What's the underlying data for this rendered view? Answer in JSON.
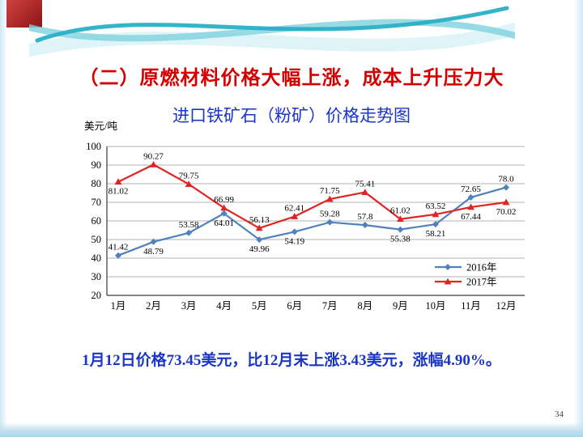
{
  "slide": {
    "title": "（二）原燃材料价格大幅上涨，成本上升压力大",
    "summary": "1月12日价格73.45美元，比12月末上涨3.43美元，涨幅4.90%。",
    "page_number": "34"
  },
  "chart_data": {
    "type": "line",
    "title": "进口铁矿石（粉矿）价格走势图",
    "unit_label": "美元/吨",
    "categories": [
      "1月",
      "2月",
      "3月",
      "4月",
      "5月",
      "6月",
      "7月",
      "8月",
      "9月",
      "10月",
      "11月",
      "12月"
    ],
    "ylim": [
      20,
      100
    ],
    "ytick_step": 10,
    "grid": true,
    "legend_position": "inside-right",
    "series": [
      {
        "name": "2016年",
        "color": "#4f81bd",
        "marker": "diamond",
        "values": [
          41.42,
          48.79,
          53.58,
          64.01,
          49.96,
          54.19,
          59.28,
          57.8,
          55.38,
          58.21,
          72.65,
          78.0
        ],
        "labels": [
          "41.42",
          "48.79",
          "53.58",
          "64.01",
          "49.96",
          "54.19",
          "59.28",
          "57.8",
          "55.38",
          "58.21",
          "72.65",
          "78.0"
        ],
        "label_pos": [
          "above",
          "below",
          "above",
          "below",
          "below",
          "below",
          "above",
          "above",
          "below",
          "below",
          "above",
          "above"
        ]
      },
      {
        "name": "2017年",
        "color": "#e02424",
        "marker": "triangle",
        "values": [
          81.02,
          90.27,
          79.75,
          66.99,
          56.13,
          62.41,
          71.75,
          75.41,
          61.02,
          63.52,
          67.44,
          70.02
        ],
        "labels": [
          "81.02",
          "90.27",
          "79.75",
          "66.99",
          "56.13",
          "62.41",
          "71.75",
          "75.41",
          "61.02",
          "63.52",
          "67.44",
          "70.02"
        ],
        "label_pos": [
          "below",
          "above",
          "above",
          "above",
          "above",
          "above",
          "above",
          "above",
          "above",
          "above",
          "below",
          "below"
        ]
      }
    ]
  }
}
